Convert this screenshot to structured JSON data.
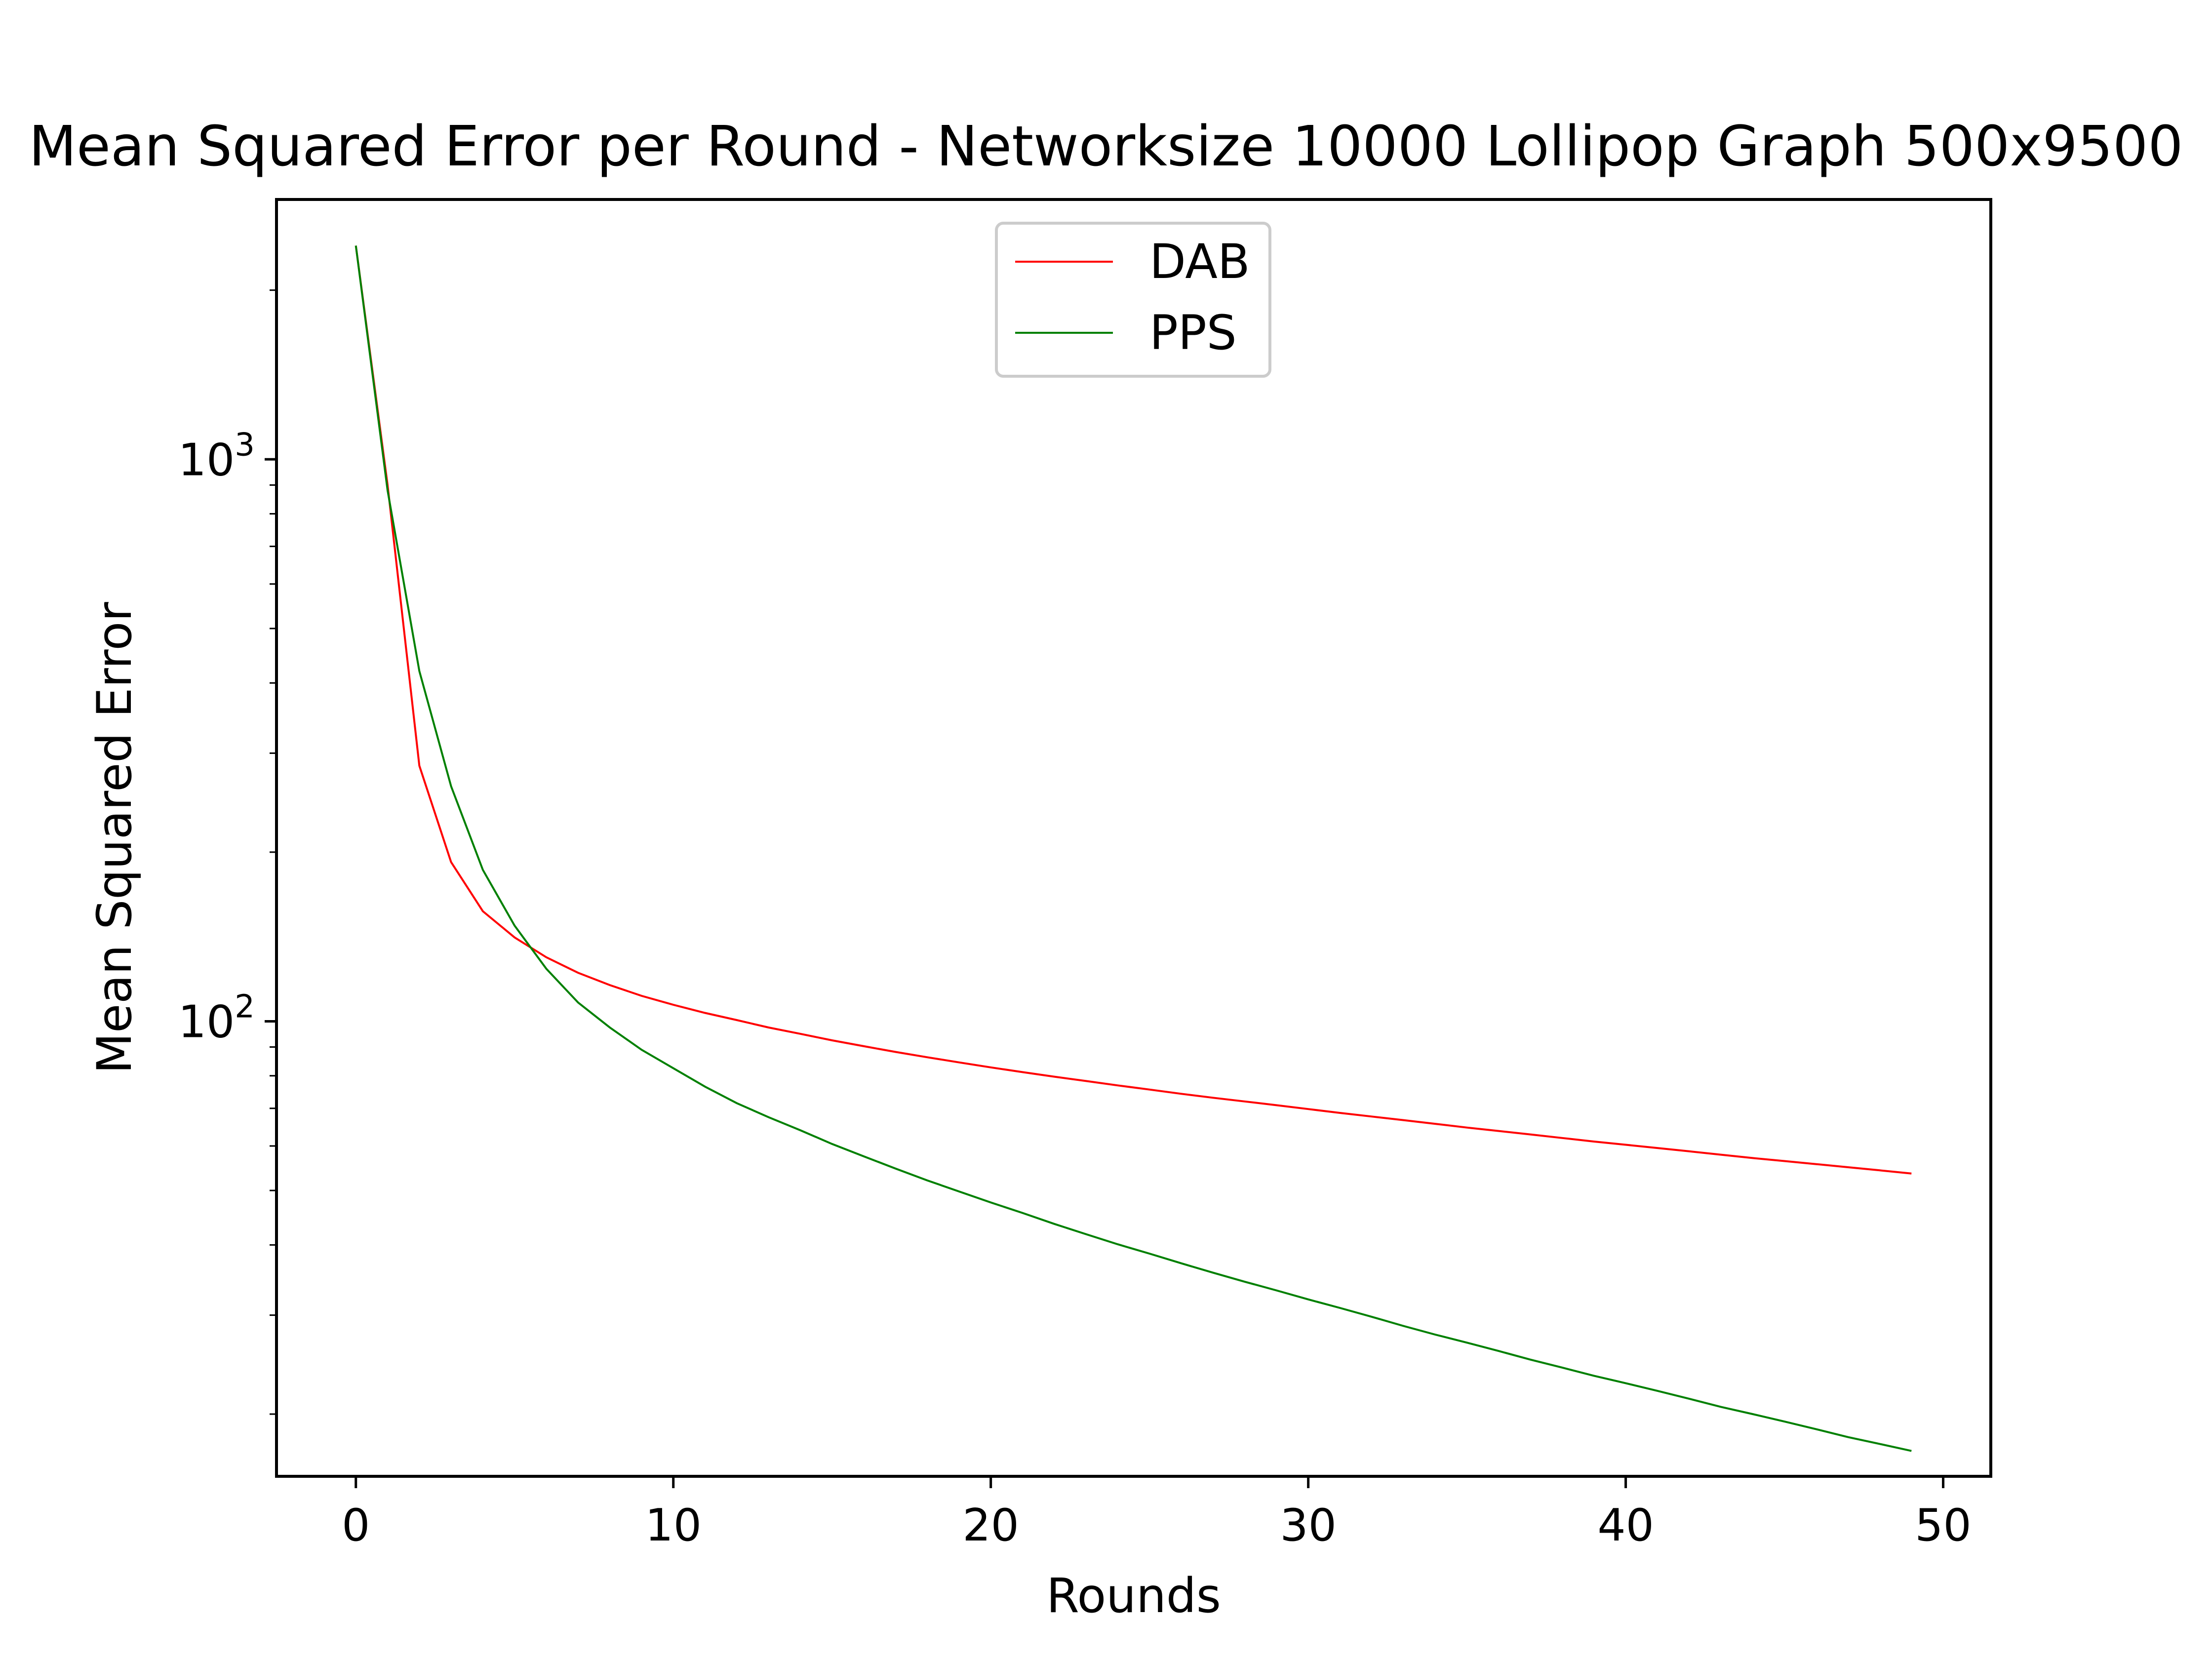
{
  "chart_data": {
    "type": "line",
    "title": "Mean Squared Error per Round - Networksize 10000 Lollipop Graph 500x9500",
    "xlabel": "Rounds",
    "ylabel": "Mean Squared Error",
    "xlim": [
      -2.5,
      51.5
    ],
    "ylim": [
      15.5,
      2900
    ],
    "yscale": "log",
    "xticks": [
      0,
      10,
      20,
      30,
      40,
      50
    ],
    "yticks": [
      {
        "value": 100,
        "base": "10",
        "exp": "2"
      },
      {
        "value": 1000,
        "base": "10",
        "exp": "3"
      }
    ],
    "grid": false,
    "legend": {
      "placement": "top-center"
    },
    "series": [
      {
        "name": "DAB",
        "color": "#ff0000",
        "x": [
          0,
          1,
          2,
          3,
          4,
          5,
          6,
          7,
          8,
          9,
          10,
          11,
          12,
          13,
          14,
          15,
          16,
          17,
          18,
          19,
          20,
          21,
          22,
          23,
          24,
          25,
          26,
          27,
          28,
          29,
          30,
          31,
          32,
          33,
          34,
          35,
          36,
          37,
          38,
          39,
          40,
          41,
          42,
          43,
          44,
          45,
          46,
          47,
          48,
          49
        ],
        "y": [
          2400,
          900,
          285,
          192,
          157,
          141,
          130,
          122,
          116,
          111,
          107,
          103.5,
          100.5,
          97.5,
          95,
          92.5,
          90.3,
          88.2,
          86.3,
          84.5,
          82.8,
          81.2,
          79.7,
          78.3,
          76.9,
          75.6,
          74.3,
          73.1,
          72,
          70.9,
          69.8,
          68.7,
          67.7,
          66.7,
          65.7,
          64.7,
          63.8,
          62.9,
          62,
          61.1,
          60.3,
          59.5,
          58.7,
          57.9,
          57.1,
          56.4,
          55.7,
          55,
          54.3,
          53.6
        ]
      },
      {
        "name": "PPS",
        "color": "#008000",
        "x": [
          0,
          1,
          2,
          3,
          4,
          5,
          6,
          7,
          8,
          9,
          10,
          11,
          12,
          13,
          14,
          15,
          16,
          17,
          18,
          19,
          20,
          21,
          22,
          23,
          24,
          25,
          26,
          27,
          28,
          29,
          30,
          31,
          32,
          33,
          34,
          35,
          36,
          37,
          38,
          39,
          40,
          41,
          42,
          43,
          44,
          45,
          46,
          47,
          48,
          49
        ],
        "y": [
          2400,
          880,
          420,
          262,
          186,
          148,
          124,
          108,
          97.5,
          89,
          82.5,
          76.5,
          71.5,
          67.5,
          64,
          60.5,
          57.5,
          54.7,
          52.1,
          49.8,
          47.6,
          45.6,
          43.6,
          41.8,
          40.1,
          38.6,
          37.1,
          35.7,
          34.4,
          33.2,
          32,
          30.9,
          29.8,
          28.7,
          27.7,
          26.8,
          25.9,
          25,
          24.2,
          23.4,
          22.7,
          22,
          21.3,
          20.6,
          20,
          19.4,
          18.8,
          18.2,
          17.7,
          17.2
        ]
      }
    ]
  }
}
